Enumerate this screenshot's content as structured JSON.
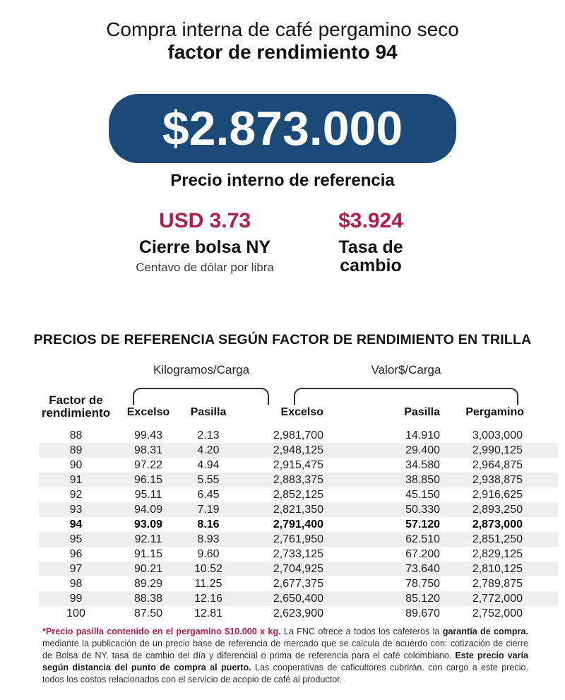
{
  "colors": {
    "navy": "#1c4a78",
    "crimson": "#b01e4c",
    "row_alt": "#efefef"
  },
  "header": {
    "title_line1": "Compra interna de café pergamino seco",
    "title_line2": "factor de rendimiento 94"
  },
  "hero": {
    "price": "$2.873.000",
    "caption": "Precio interno de referencia"
  },
  "metrics": {
    "ny": {
      "value": "USD 3.73",
      "label": "Cierre bolsa NY",
      "sub": "Centavo de dólar por libra"
    },
    "fx": {
      "value": "$3.924",
      "label_line1": "Tasa de",
      "label_line2": "cambio"
    }
  },
  "table": {
    "section_title": "PRECIOS DE REFERENCIA SEGÚN FACTOR DE RENDIMIENTO EN TRILLA",
    "group_labels": {
      "kilograms": "Kilogramos/Carga",
      "value": "Valor$/Carga"
    },
    "columns": {
      "factor_line1": "Factor de",
      "factor_line2": "rendimiento",
      "excelso_kg": "Excelso",
      "pasilla_kg": "Pasilla",
      "excelso_value": "Excelso",
      "pasilla_value": "Pasilla",
      "pergamino": "Pergamino"
    },
    "rows": [
      {
        "factor": "88",
        "excelso_kg": "99.43",
        "pasilla_kg": "2.13",
        "excelso_value": "2,981,700",
        "pasilla_value": "14.910",
        "pergamino": "3,003,000",
        "highlight": false
      },
      {
        "factor": "89",
        "excelso_kg": "98.31",
        "pasilla_kg": "4.20",
        "excelso_value": "2,948,125",
        "pasilla_value": "29.400",
        "pergamino": "2,990,125",
        "highlight": false
      },
      {
        "factor": "90",
        "excelso_kg": "97.22",
        "pasilla_kg": "4.94",
        "excelso_value": "2,915,475",
        "pasilla_value": "34.580",
        "pergamino": "2,964,875",
        "highlight": false
      },
      {
        "factor": "91",
        "excelso_kg": "96.15",
        "pasilla_kg": "5.55",
        "excelso_value": "2,883,375",
        "pasilla_value": "38.850",
        "pergamino": "2,938,875",
        "highlight": false
      },
      {
        "factor": "92",
        "excelso_kg": "95.11",
        "pasilla_kg": "6.45",
        "excelso_value": "2,852,125",
        "pasilla_value": "45.150",
        "pergamino": "2,916,625",
        "highlight": false
      },
      {
        "factor": "93",
        "excelso_kg": "94.09",
        "pasilla_kg": "7.19",
        "excelso_value": "2,821,350",
        "pasilla_value": "50.330",
        "pergamino": "2,893,250",
        "highlight": false
      },
      {
        "factor": "94",
        "excelso_kg": "93.09",
        "pasilla_kg": "8.16",
        "excelso_value": "2,791,400",
        "pasilla_value": "57.120",
        "pergamino": "2,873,000",
        "highlight": true
      },
      {
        "factor": "95",
        "excelso_kg": "92.11",
        "pasilla_kg": "8.93",
        "excelso_value": "2,761,950",
        "pasilla_value": "62.510",
        "pergamino": "2,851,250",
        "highlight": false
      },
      {
        "factor": "96",
        "excelso_kg": "91.15",
        "pasilla_kg": "9.60",
        "excelso_value": "2,733,125",
        "pasilla_value": "67.200",
        "pergamino": "2,829,125",
        "highlight": false
      },
      {
        "factor": "97",
        "excelso_kg": "90.21",
        "pasilla_kg": "10.52",
        "excelso_value": "2,704,925",
        "pasilla_value": "73.640",
        "pergamino": "2,810,125",
        "highlight": false
      },
      {
        "factor": "98",
        "excelso_kg": "89.29",
        "pasilla_kg": "11.25",
        "excelso_value": "2,677,375",
        "pasilla_value": "78.750",
        "pergamino": "2,789,875",
        "highlight": false
      },
      {
        "factor": "99",
        "excelso_kg": "88.38",
        "pasilla_kg": "12.16",
        "excelso_value": "2,650,400",
        "pasilla_value": "85.120",
        "pergamino": "2,772,000",
        "highlight": false
      },
      {
        "factor": "100",
        "excelso_kg": "87.50",
        "pasilla_kg": "12.81",
        "excelso_value": "2,623,900",
        "pasilla_value": "89.670",
        "pergamino": "2,752,000",
        "highlight": false
      }
    ]
  },
  "footnote": {
    "part1": "*Precio pasilla contenido en el pergamino $10.000 x kg.",
    "part2": " La FNC ofrece a todos los cafeteros la ",
    "part3": "garantía de compra.",
    "part4": " mediante la publicación de un precio base de referencia de mercado que se calcula de acuerdo con: cotización de cierre de Bolsa de NY. tasa de cambio del día y diferencial o prima de referencia para el café colombiano. ",
    "part5": "Este precio varía según distancia del punto de compra al puerto.",
    "part6": " Las cooperativas de caficultores cubrirán. con cargo a este precio. todos los costos relacionados con el servicio de acopio de café al productor."
  }
}
